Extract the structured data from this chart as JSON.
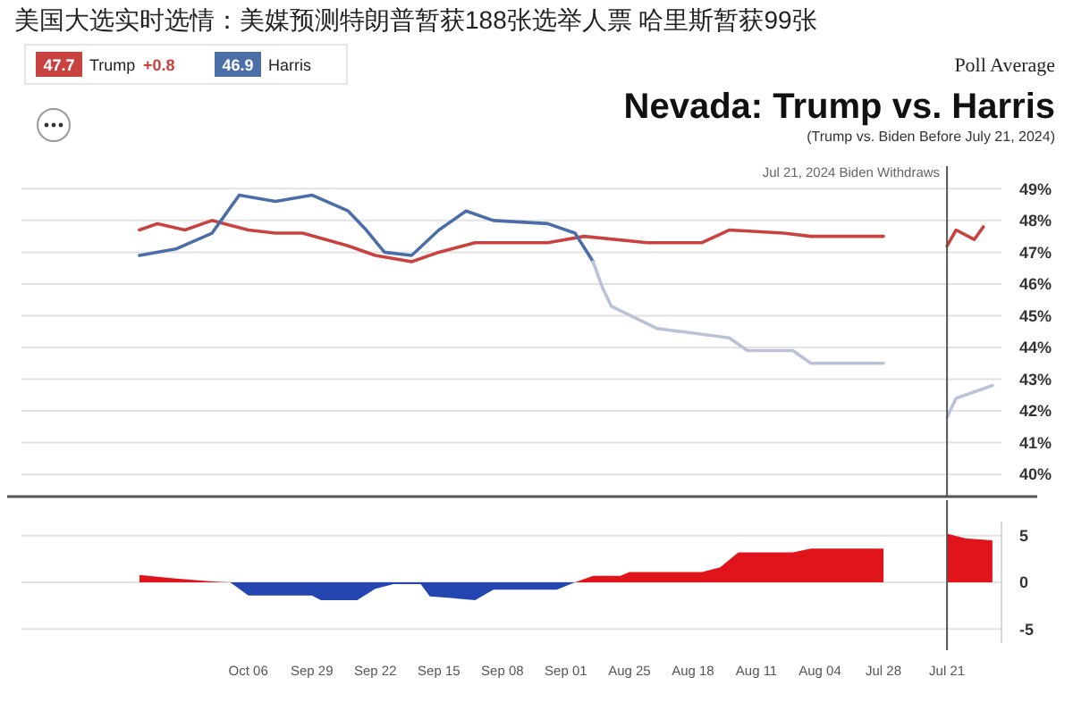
{
  "chart_data": [
    {
      "type": "line",
      "title": "Nevada: Trump vs. Harris",
      "subtitle": "(Trump vs. Biden Before July 21, 2024)",
      "annotations": [
        "美国大选实时选情：美媒预测特朗普暂获188张选举人票 哈里斯暂获99张",
        "Poll Average",
        "47.7",
        "+0.8",
        "46.9"
      ],
      "legend": "top left",
      "series": [
        {
          "name": "Trump",
          "color": "#c8423f",
          "x": [
            "2024-07-17",
            "2024-07-18",
            "2024-07-20",
            "2024-07-21",
            "2024-07-24",
            "2024-07-28",
            "2024-08-05",
            "2024-08-08",
            "2024-08-14",
            "2024-08-17",
            "2024-08-23",
            "2024-08-30",
            "2024-09-03",
            "2024-09-11",
            "2024-09-15",
            "2024-09-18",
            "2024-09-22",
            "2024-09-25",
            "2024-09-30",
            "2024-10-03",
            "2024-10-06",
            "2024-10-10",
            "2024-10-13",
            "2024-10-16",
            "2024-10-18"
          ],
          "values": [
            47.8,
            47.4,
            47.7,
            47.2,
            null,
            47.5,
            47.5,
            47.6,
            47.7,
            47.3,
            47.3,
            47.5,
            47.3,
            47.3,
            47.0,
            46.7,
            46.9,
            47.2,
            47.6,
            47.6,
            47.7,
            48.0,
            47.7,
            47.9,
            47.7
          ]
        },
        {
          "name": "Harris",
          "color": "#4b6ea8",
          "x": [
            "2024-08-29",
            "2024-08-31",
            "2024-09-03",
            "2024-09-09",
            "2024-09-12",
            "2024-09-15",
            "2024-09-18",
            "2024-09-21",
            "2024-09-23",
            "2024-09-25",
            "2024-09-29",
            "2024-10-03",
            "2024-10-07",
            "2024-10-10",
            "2024-10-14",
            "2024-10-18"
          ],
          "values": [
            46.7,
            47.6,
            47.9,
            48.0,
            48.3,
            47.7,
            46.9,
            47.0,
            47.7,
            48.3,
            48.8,
            48.6,
            48.8,
            47.6,
            47.1,
            46.9
          ]
        },
        {
          "color": "#b9c2d8",
          "x": [
            "2024-07-16",
            "2024-07-17",
            "2024-07-20",
            "2024-07-21",
            "2024-07-24",
            "2024-07-28",
            "2024-08-05",
            "2024-08-07",
            "2024-08-12",
            "2024-08-14",
            "2024-08-22",
            "2024-08-27",
            "2024-08-28",
            "2024-08-29"
          ],
          "values": [
            42.8,
            42.7,
            42.4,
            41.8,
            null,
            43.5,
            43.5,
            43.9,
            43.9,
            44.3,
            44.6,
            45.3,
            45.9,
            46.7
          ]
        }
      ],
      "xlim": [
        "2024-10-31",
        "2024-07-15"
      ],
      "ylim": [
        39.3,
        49.6
      ],
      "yticks": [
        {
          "value": 40,
          "label": "40%"
        },
        {
          "value": 41,
          "label": "41%"
        },
        {
          "value": 42,
          "label": "42%"
        },
        {
          "value": 43,
          "label": "43%"
        },
        {
          "value": 44,
          "label": "44%"
        },
        {
          "value": 45,
          "label": "45%"
        },
        {
          "value": 46,
          "label": "46%"
        },
        {
          "value": 47,
          "label": "47%"
        },
        {
          "value": 48,
          "label": "48%"
        },
        {
          "value": 49,
          "label": "49%"
        }
      ],
      "grid": "y",
      "tick_labels": "y",
      "ref_lines": [
        {
          "axis": "x",
          "value": "2024-07-21",
          "label": "Jul 21, 2024 Biden Withdraws",
          "color": "#555555"
        }
      ]
    },
    {
      "type": "area",
      "series": [
        {
          "color": "#e0141b",
          "x": [
            "2024-07-16",
            "2024-07-19",
            "2024-07-21",
            "2024-07-24",
            "2024-07-28",
            "2024-08-05",
            "2024-08-07",
            "2024-08-13",
            "2024-08-15",
            "2024-08-17",
            "2024-08-25",
            "2024-08-26",
            "2024-08-29",
            "2024-08-31",
            "2024-09-05",
            "2024-10-08",
            "2024-10-10",
            "2024-10-14",
            "2024-10-18"
          ],
          "values": [
            4.5,
            4.7,
            5.2,
            null,
            3.6,
            3.6,
            3.2,
            3.2,
            1.6,
            1.1,
            1.1,
            0.7,
            0.7,
            0,
            null,
            0,
            0.1,
            0.4,
            0.8
          ]
        },
        {
          "color": "#2546b0",
          "x": [
            "2024-08-31",
            "2024-09-02",
            "2024-09-09",
            "2024-09-11",
            "2024-09-16",
            "2024-09-17",
            "2024-09-20",
            "2024-09-22",
            "2024-09-24",
            "2024-09-28",
            "2024-09-29",
            "2024-10-06",
            "2024-10-08"
          ],
          "values": [
            0,
            -0.8,
            -0.8,
            -1.9,
            -1.5,
            -0.2,
            -0.2,
            -0.7,
            -1.9,
            -1.9,
            -1.4,
            -1.4,
            0
          ]
        }
      ],
      "xlim": [
        "2024-10-31",
        "2024-07-15"
      ],
      "xticks": [
        {
          "value": "2024-07-21",
          "label": "Jul 21"
        },
        {
          "value": "2024-07-28",
          "label": "Jul 28"
        },
        {
          "value": "2024-08-04",
          "label": "Aug 04"
        },
        {
          "value": "2024-08-11",
          "label": "Aug 11"
        },
        {
          "value": "2024-08-18",
          "label": "Aug 18"
        },
        {
          "value": "2024-08-25",
          "label": "Aug 25"
        },
        {
          "value": "2024-09-01",
          "label": "Sep 01"
        },
        {
          "value": "2024-09-08",
          "label": "Sep 08"
        },
        {
          "value": "2024-09-15",
          "label": "Sep 15"
        },
        {
          "value": "2024-09-22",
          "label": "Sep 22"
        },
        {
          "value": "2024-09-29",
          "label": "Sep 29"
        },
        {
          "value": "2024-10-06",
          "label": "Oct 06"
        }
      ],
      "ylim": [
        -6.5,
        6.5
      ],
      "yticks": [
        -5,
        0,
        5
      ],
      "grid": "y",
      "ref_lines": [
        {
          "axis": "x",
          "value": "2024-07-21",
          "color": "#555555"
        }
      ]
    }
  ]
}
